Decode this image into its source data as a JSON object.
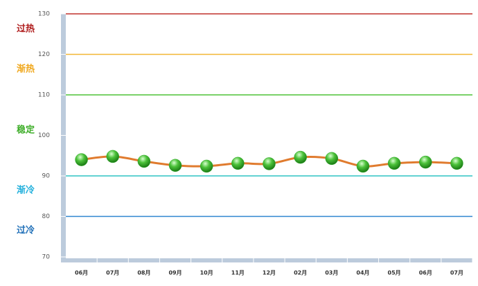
{
  "chart_data": {
    "type": "line",
    "categories": [
      "06月",
      "07月",
      "08月",
      "09月",
      "10月",
      "11月",
      "12月",
      "02月",
      "03月",
      "04月",
      "05月",
      "06月",
      "07月"
    ],
    "series": [
      {
        "color": "#e07b2e",
        "marker_color": "#2fa82a",
        "values": [
          94,
          94.8,
          93.6,
          92.6,
          92.4,
          93.1,
          93,
          94.6,
          94.3,
          92.4,
          93.1,
          93.4,
          93.1
        ]
      }
    ],
    "ylim": [
      70,
      130
    ],
    "yticks": [
      70,
      80,
      90,
      100,
      110,
      120,
      130
    ],
    "reference_lines": [
      {
        "value": 130,
        "color": "#c0302c"
      },
      {
        "value": 120,
        "color": "#f2b632"
      },
      {
        "value": 110,
        "color": "#4fc236"
      },
      {
        "value": 90,
        "color": "#2ec4c4"
      },
      {
        "value": 80,
        "color": "#2f86d0"
      }
    ],
    "zones": [
      {
        "label": "过热",
        "color": "#b01e1e"
      },
      {
        "label": "渐热",
        "color": "#f0a81e"
      },
      {
        "label": "稳定",
        "color": "#3fae2a"
      },
      {
        "label": "渐冷",
        "color": "#22b0dc"
      },
      {
        "label": "过冷",
        "color": "#1f6fb8"
      }
    ]
  }
}
